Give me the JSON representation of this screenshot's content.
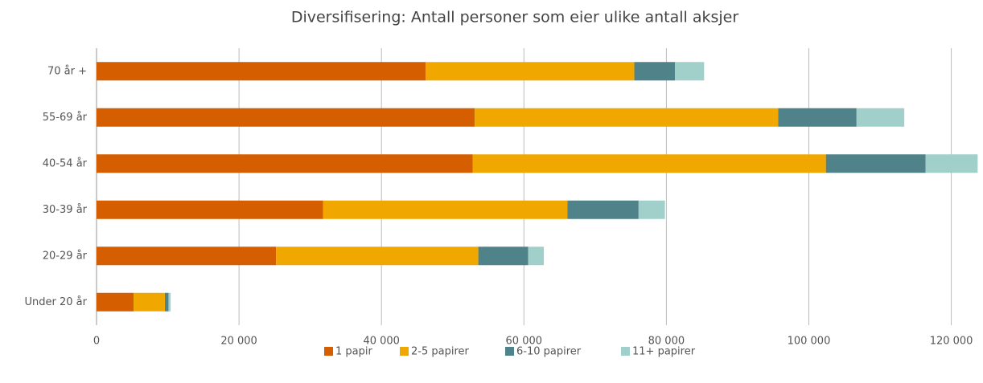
{
  "chart_data": {
    "type": "stacked-bar-horizontal",
    "title": "Diversifisering: Antall personer som eier ulike antall aksjer",
    "categories": [
      "70 år +",
      "55-69 år",
      "40-54 år",
      "30-39 år",
      "20-29 år",
      "Under 20 år"
    ],
    "series": [
      {
        "name": "1 papir",
        "color": "#d45e00",
        "values": [
          46200,
          53100,
          52800,
          31800,
          25200,
          5200
        ]
      },
      {
        "name": "2-5 papirer",
        "color": "#f0a800",
        "values": [
          29300,
          42600,
          49600,
          34300,
          28400,
          4400
        ]
      },
      {
        "name": "6-10 papirer",
        "color": "#4f8389",
        "values": [
          5700,
          11000,
          14000,
          10000,
          7000,
          500
        ]
      },
      {
        "name": "11+ papirer",
        "color": "#a1d0cb",
        "values": [
          4100,
          6700,
          7300,
          3700,
          2200,
          300
        ]
      }
    ],
    "xlim": [
      0,
      124000
    ],
    "xticks": [
      0,
      {
        "value": 20000,
        "label": "20 000"
      },
      {
        "value": 40000,
        "label": "40 000"
      },
      {
        "value": 60000,
        "label": "60 000"
      },
      {
        "value": 80000,
        "label": "80 000"
      },
      {
        "value": 100000,
        "label": "100 000"
      },
      {
        "value": 120000,
        "label": "120 000"
      }
    ],
    "grid": true,
    "legend": "bottom"
  }
}
